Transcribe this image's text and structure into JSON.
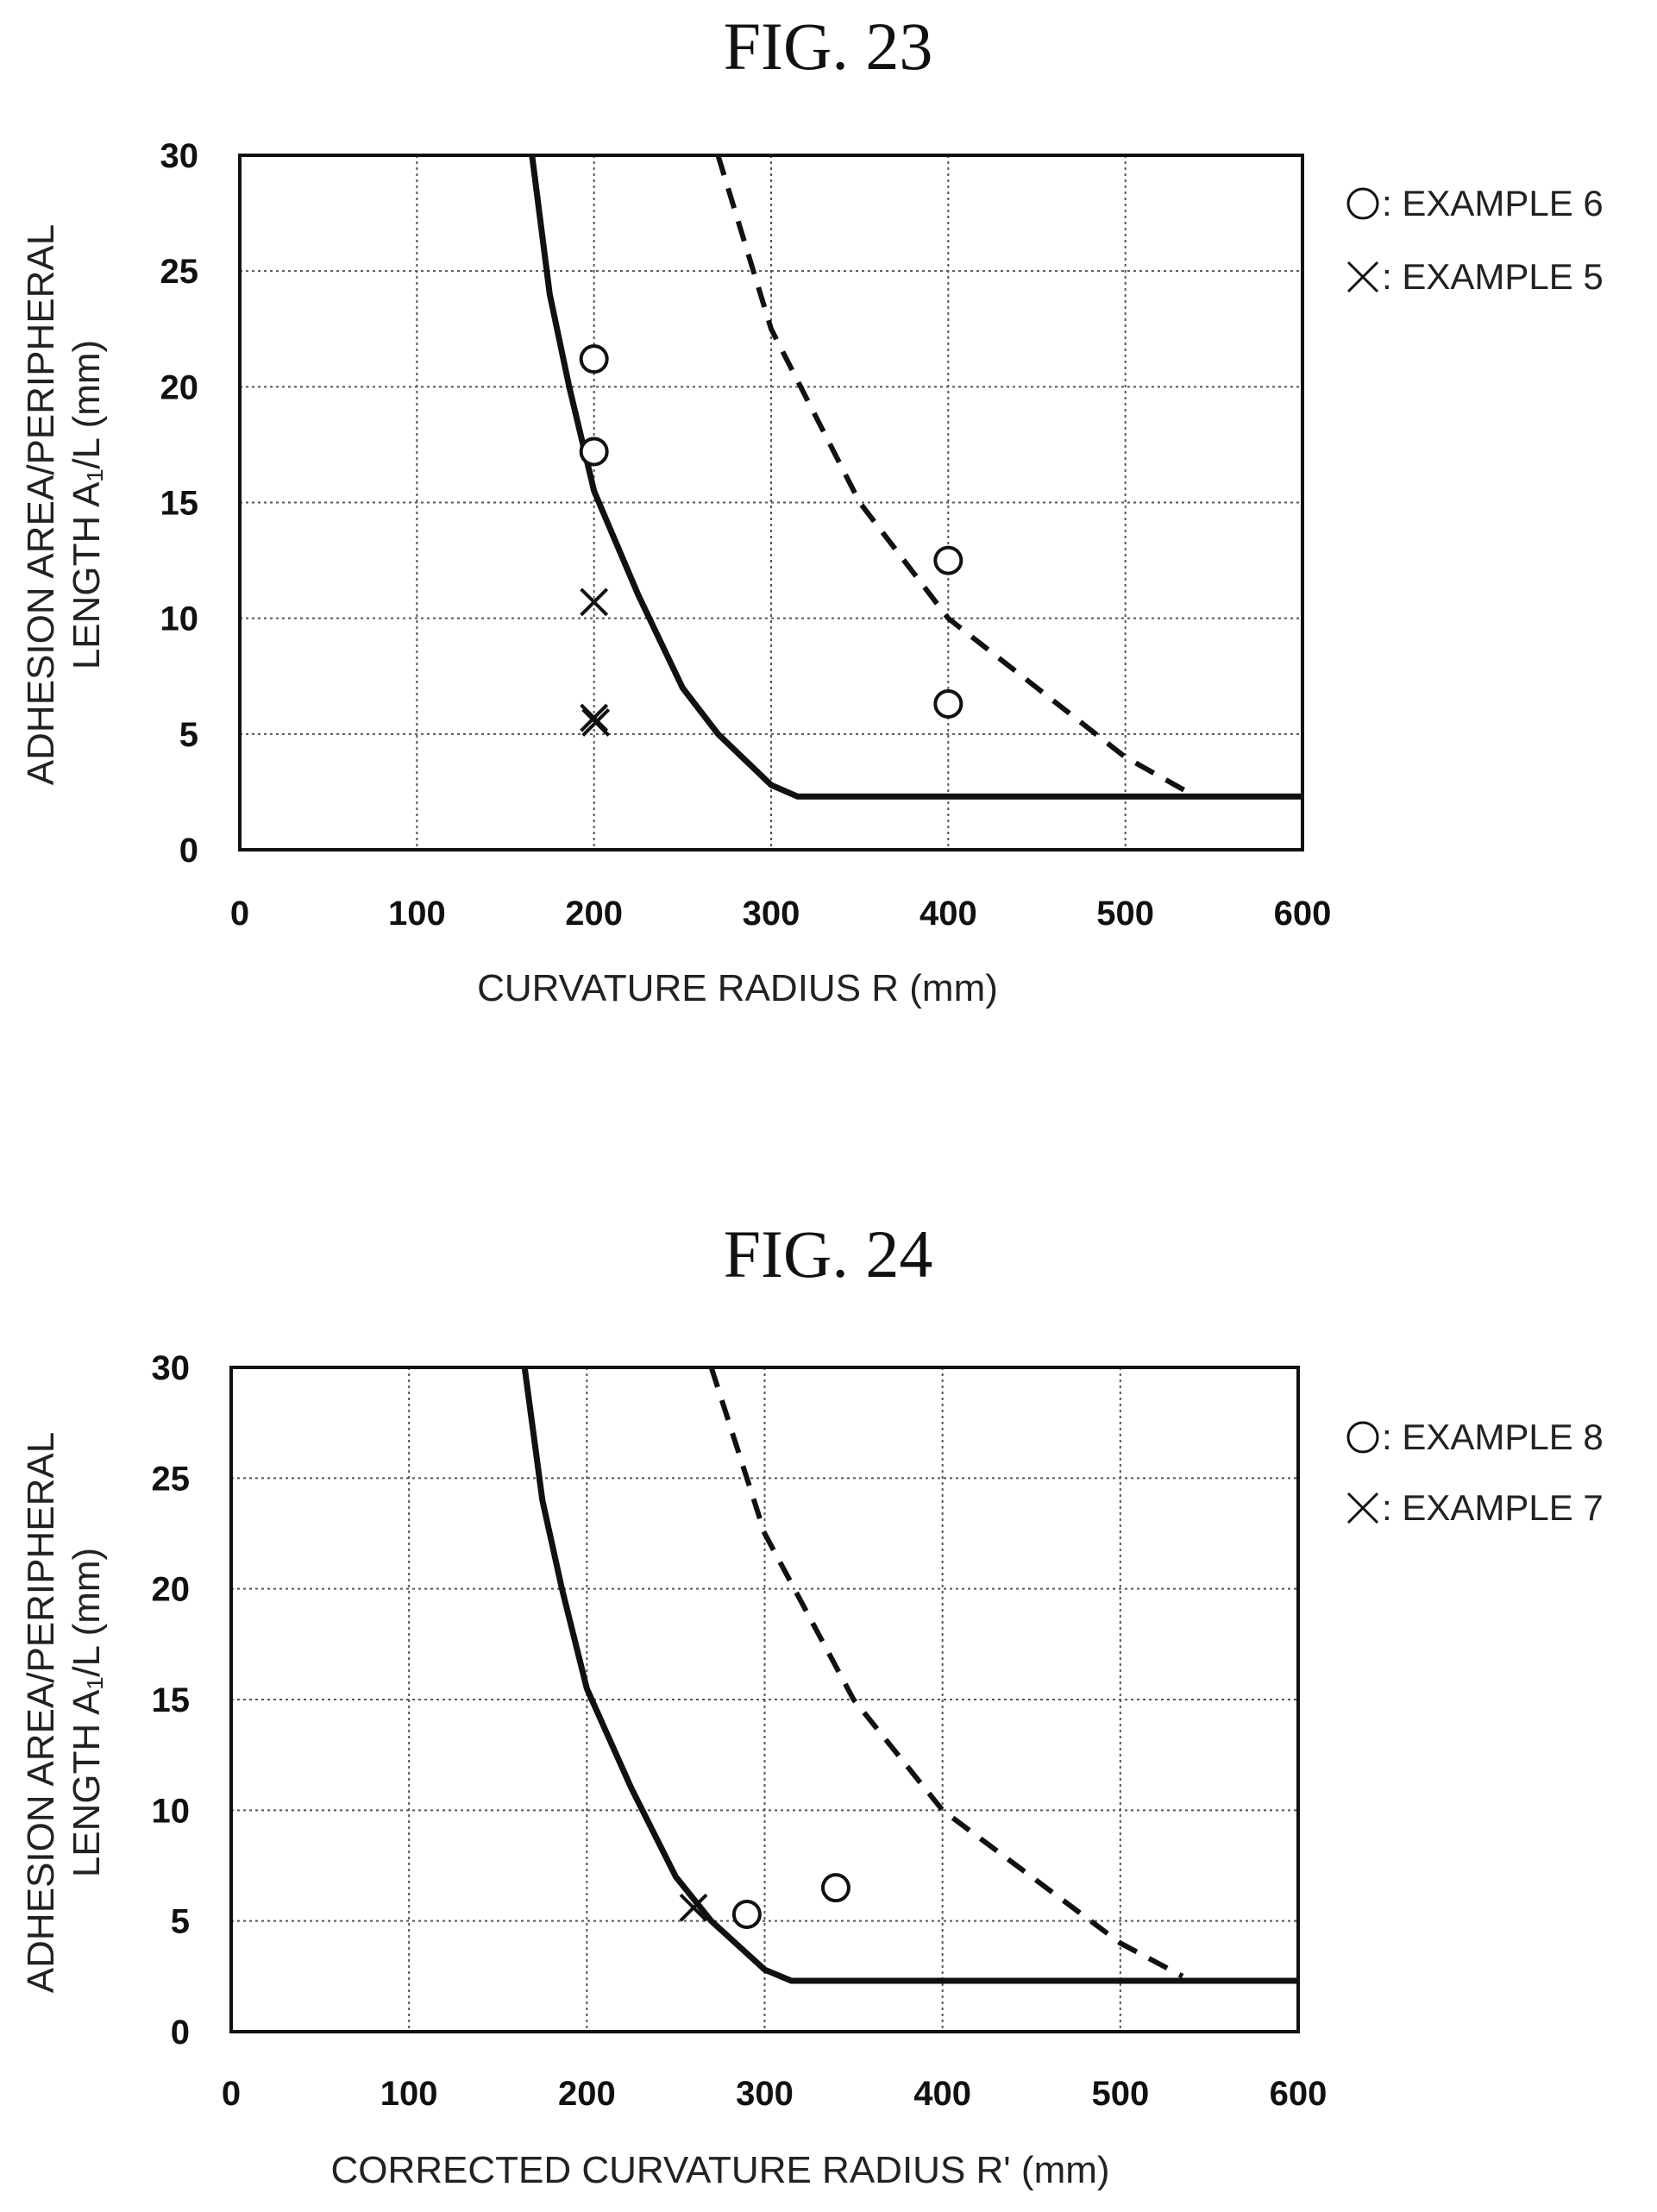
{
  "chart_data": [
    {
      "type": "scatter",
      "title": "FIG. 23",
      "xlabel": "CURVATURE  RADIUS R (mm)",
      "ylabel_line1": "ADHESION AREA/PERIPHERAL",
      "ylabel_line2": "LENGTH A₁/L (mm)",
      "xlim": [
        0,
        600
      ],
      "ylim": [
        0,
        30
      ],
      "xticks": [
        0,
        100,
        200,
        300,
        400,
        500,
        600
      ],
      "yticks": [
        0,
        5,
        10,
        15,
        20,
        25,
        30
      ],
      "grid": true,
      "legend_position": "right",
      "curves": [
        {
          "style": "solid",
          "points": [
            [
              165,
              30
            ],
            [
              175,
              24
            ],
            [
              186,
              20
            ],
            [
              200,
              15.5
            ],
            [
              225,
              11
            ],
            [
              250,
              7
            ],
            [
              270,
              5
            ],
            [
              300,
              2.8
            ],
            [
              315,
              2.3
            ],
            [
              600,
              2.3
            ]
          ]
        },
        {
          "style": "dashed",
          "points": [
            [
              270,
              30
            ],
            [
              300,
              22.5
            ],
            [
              350,
              15
            ],
            [
              400,
              10
            ],
            [
              450,
              7
            ],
            [
              500,
              4
            ],
            [
              535,
              2.5
            ]
          ]
        }
      ],
      "series": [
        {
          "name": "EXAMPLE 6",
          "marker": "circle",
          "points": [
            [
              200,
              21.2
            ],
            [
              200,
              17.2
            ],
            [
              400,
              12.5
            ],
            [
              400,
              6.3
            ]
          ]
        },
        {
          "name": "EXAMPLE 5",
          "marker": "cross",
          "points": [
            [
              200,
              10.7
            ],
            [
              200,
              5.7
            ],
            [
              201,
              5.5
            ]
          ]
        }
      ],
      "legend": [
        {
          "symbol": "○",
          "label": ": EXAMPLE 6"
        },
        {
          "symbol": "✕",
          "label": ": EXAMPLE 5"
        }
      ]
    },
    {
      "type": "scatter",
      "title": "FIG. 24",
      "xlabel": "CORRECTED CURVATURE  RADIUS  R' (mm)",
      "ylabel_line1": "ADHESION AREA/PERIPHERAL",
      "ylabel_line2": "LENGTH A₁/L (mm)",
      "xlim": [
        0,
        600
      ],
      "ylim": [
        0,
        30
      ],
      "xticks": [
        0,
        100,
        200,
        300,
        400,
        500,
        600
      ],
      "yticks": [
        0,
        5,
        10,
        15,
        20,
        25,
        30
      ],
      "grid": true,
      "legend_position": "right",
      "curves": [
        {
          "style": "solid",
          "points": [
            [
              165,
              30
            ],
            [
              175,
              24
            ],
            [
              186,
              20
            ],
            [
              200,
              15.5
            ],
            [
              225,
              11
            ],
            [
              250,
              7
            ],
            [
              270,
              5
            ],
            [
              300,
              2.8
            ],
            [
              315,
              2.3
            ],
            [
              600,
              2.3
            ]
          ]
        },
        {
          "style": "dashed",
          "points": [
            [
              270,
              30
            ],
            [
              300,
              22.5
            ],
            [
              350,
              15
            ],
            [
              400,
              10
            ],
            [
              450,
              7
            ],
            [
              500,
              4
            ],
            [
              535,
              2.5
            ]
          ]
        }
      ],
      "series": [
        {
          "name": "EXAMPLE 8",
          "marker": "circle",
          "points": [
            [
              290,
              5.3
            ],
            [
              340,
              6.5
            ]
          ]
        },
        {
          "name": "EXAMPLE 7",
          "marker": "cross",
          "points": [
            [
              260,
              5.6
            ]
          ]
        }
      ],
      "legend": [
        {
          "symbol": "○",
          "label": ": EXAMPLE 8"
        },
        {
          "symbol": "✕",
          "label": ": EXAMPLE 7"
        }
      ]
    }
  ]
}
